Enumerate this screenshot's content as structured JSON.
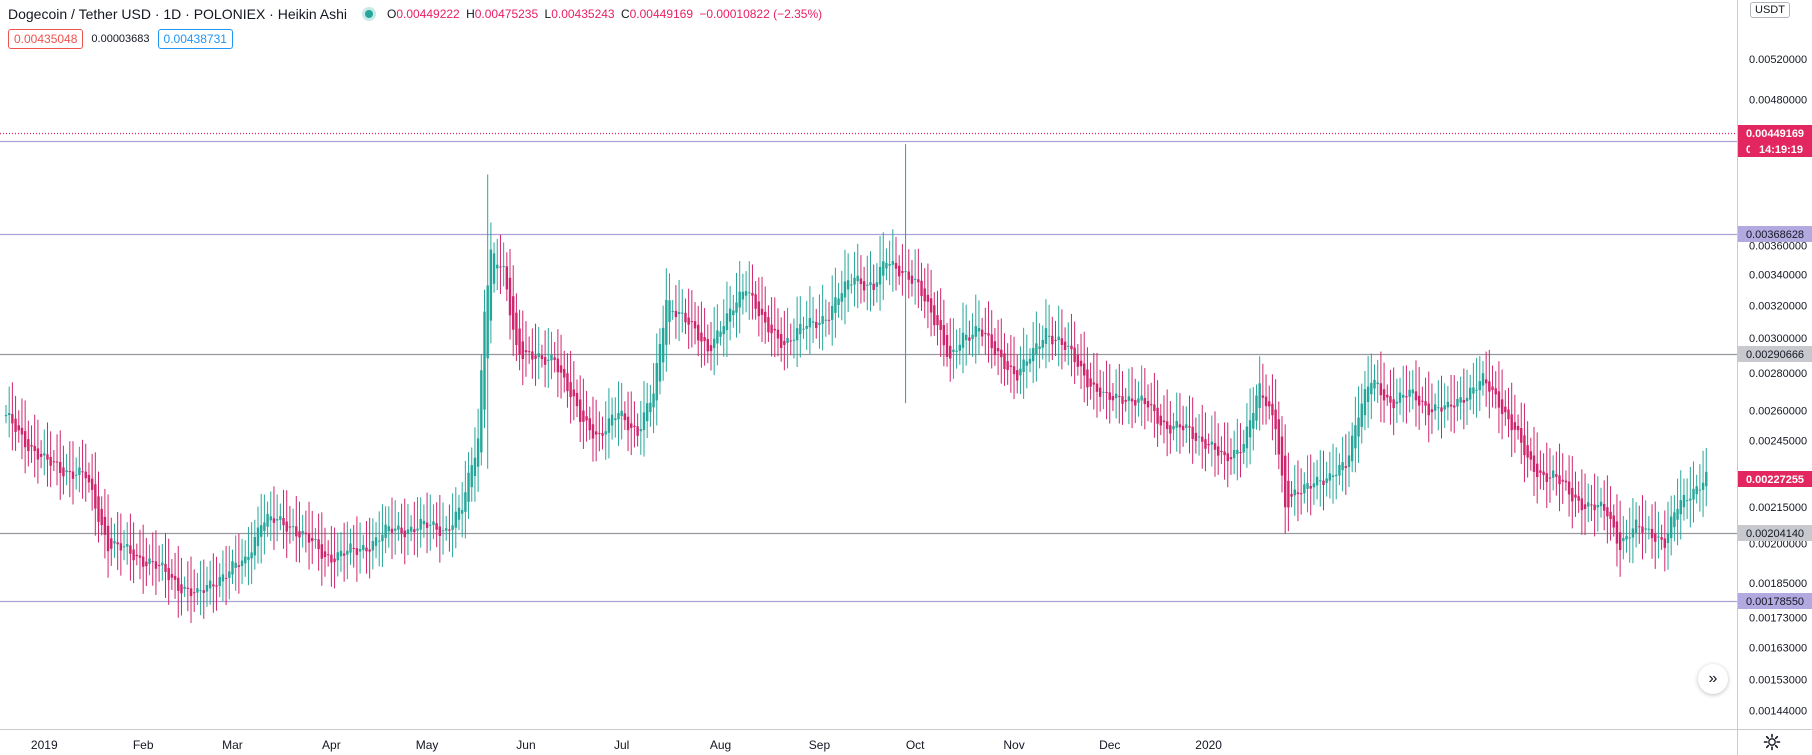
{
  "legend": {
    "title": "Dogecoin / Tether USD · 1D · POLONIEX · Heikin Ashi",
    "open_label": "O",
    "open": "0.00449222",
    "high_label": "H",
    "high": "0.00475235",
    "low_label": "L",
    "low": "0.00435243",
    "close_label": "C",
    "close": "0.00449169",
    "change": "−0.00010822 (−2.35%)"
  },
  "quotes": {
    "sell": "0.00435048",
    "spread": "0.00003683",
    "buy": "0.00438731"
  },
  "currency": "USDT",
  "colors": {
    "up": "#26a69a",
    "down": "#d0246c",
    "hline": "#9598a1",
    "hline_purple": "#a9a2d6",
    "tag_red": "#e2265f",
    "tag_purple": "#b2a9e0"
  },
  "chart_data": {
    "type": "candlestick",
    "style": "Heikin Ashi",
    "symbol": "DOGE/USDT",
    "exchange": "POLONIEX",
    "interval": "1D",
    "y_scale": "log",
    "ylim": [
      0.0014,
      0.0057
    ],
    "x_ticks": [
      "2019",
      "Feb",
      "Mar",
      "Apr",
      "May",
      "Jun",
      "Jul",
      "Aug",
      "Sep",
      "Oct",
      "Nov",
      "Dec",
      "2020"
    ],
    "y_ticks": [
      "0.00520000",
      "0.00480000",
      "0.00360000",
      "0.00340000",
      "0.00320000",
      "0.00300000",
      "0.00280000",
      "0.00260000",
      "0.00245000",
      "0.00215000",
      "0.00200000",
      "0.00185000",
      "0.00173000",
      "0.00163000",
      "0.00153000",
      "0.00144000"
    ],
    "horizontal_lines": [
      {
        "value": 0.00449169,
        "label": "0.00449169",
        "style": "dotted",
        "color": "#e2265f"
      },
      {
        "value": 0.00442805,
        "label": "0.00442805",
        "color": "#a9a2d6"
      },
      {
        "value": 0.00368628,
        "label": "0.00368628",
        "color": "#a9a2d6"
      },
      {
        "value": 0.00290666,
        "label": "0.00290666",
        "color": "#9598a1"
      },
      {
        "value": 0.0020414,
        "label": "0.00204140",
        "color": "#9598a1"
      },
      {
        "value": 0.0017855,
        "label": "0.00178550",
        "color": "#a9a2d6"
      }
    ],
    "price_tags": [
      {
        "value": 0.00449169,
        "label": "0.00449169",
        "color": "#e2265f"
      },
      {
        "value": 0.00435243,
        "label": "0.00435243",
        "color": "#e2265f"
      },
      {
        "value": 0.00227255,
        "label": "0.00227255",
        "color": "#e2265f"
      }
    ],
    "countdown": "14:19:19",
    "anchors": [
      [
        0,
        0.00256
      ],
      [
        12,
        0.00235
      ],
      [
        25,
        0.00228
      ],
      [
        32,
        0.002
      ],
      [
        45,
        0.00193
      ],
      [
        55,
        0.00184
      ],
      [
        60,
        0.0018
      ],
      [
        65,
        0.00186
      ],
      [
        75,
        0.00193
      ],
      [
        80,
        0.0021
      ],
      [
        90,
        0.00207
      ],
      [
        100,
        0.00195
      ],
      [
        110,
        0.00197
      ],
      [
        120,
        0.00205
      ],
      [
        130,
        0.00207
      ],
      [
        138,
        0.00206
      ],
      [
        143,
        0.00214
      ],
      [
        148,
        0.00247
      ],
      [
        150,
        0.0032
      ],
      [
        152,
        0.00355
      ],
      [
        156,
        0.0034
      ],
      [
        160,
        0.00295
      ],
      [
        168,
        0.00285
      ],
      [
        172,
        0.0029
      ],
      [
        180,
        0.00255
      ],
      [
        186,
        0.00248
      ],
      [
        192,
        0.00258
      ],
      [
        198,
        0.0025
      ],
      [
        203,
        0.00268
      ],
      [
        207,
        0.00325
      ],
      [
        215,
        0.00305
      ],
      [
        220,
        0.00295
      ],
      [
        226,
        0.0031
      ],
      [
        232,
        0.00335
      ],
      [
        238,
        0.00305
      ],
      [
        244,
        0.00298
      ],
      [
        252,
        0.00308
      ],
      [
        258,
        0.00315
      ],
      [
        266,
        0.0034
      ],
      [
        272,
        0.0033
      ],
      [
        276,
        0.0035
      ],
      [
        280,
        0.00345
      ],
      [
        286,
        0.0033
      ],
      [
        292,
        0.0031
      ],
      [
        296,
        0.00285
      ],
      [
        300,
        0.003
      ],
      [
        305,
        0.00308
      ],
      [
        310,
        0.0029
      ],
      [
        317,
        0.0028
      ],
      [
        322,
        0.0029
      ],
      [
        326,
        0.00305
      ],
      [
        330,
        0.00298
      ],
      [
        336,
        0.00285
      ],
      [
        341,
        0.00272
      ],
      [
        345,
        0.00265
      ],
      [
        350,
        0.00268
      ],
      [
        358,
        0.00262
      ],
      [
        364,
        0.00252
      ],
      [
        370,
        0.0025
      ],
      [
        376,
        0.00245
      ],
      [
        382,
        0.00235
      ],
      [
        388,
        0.00245
      ],
      [
        393,
        0.0027
      ],
      [
        398,
        0.00255
      ],
      [
        401,
        0.00215
      ],
      [
        405,
        0.0022
      ],
      [
        410,
        0.00228
      ],
      [
        415,
        0.00226
      ],
      [
        420,
        0.00235
      ],
      [
        424,
        0.0026
      ],
      [
        428,
        0.00275
      ],
      [
        434,
        0.00265
      ],
      [
        440,
        0.00268
      ],
      [
        446,
        0.00262
      ],
      [
        452,
        0.0026
      ],
      [
        458,
        0.0027
      ],
      [
        463,
        0.00275
      ],
      [
        468,
        0.00265
      ],
      [
        473,
        0.0025
      ],
      [
        477,
        0.00235
      ],
      [
        481,
        0.0023
      ],
      [
        485,
        0.00228
      ],
      [
        491,
        0.0022
      ],
      [
        496,
        0.00215
      ],
      [
        502,
        0.00213
      ],
      [
        506,
        0.002
      ],
      [
        511,
        0.00206
      ],
      [
        516,
        0.00205
      ],
      [
        520,
        0.002
      ],
      [
        524,
        0.00215
      ],
      [
        528,
        0.00222
      ],
      [
        533,
        0.00227
      ]
    ]
  },
  "scroll_button_glyph": "»"
}
